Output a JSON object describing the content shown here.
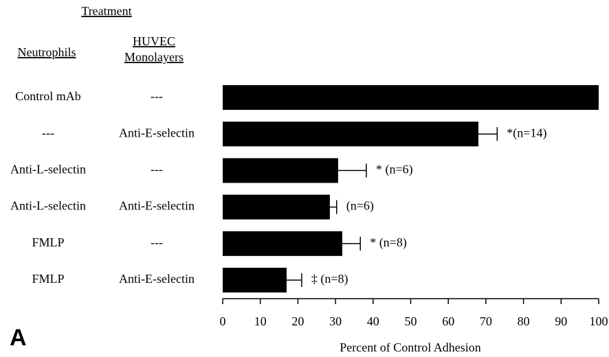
{
  "chart_data": {
    "type": "bar",
    "orientation": "horizontal",
    "panel_label": "A",
    "column_title": "Treatment",
    "column_headers": [
      "Neutrophils",
      [
        "HUVEC",
        "Monolayers"
      ]
    ],
    "categories": [
      [
        "Control mAb",
        "---"
      ],
      [
        "---",
        "Anti-E-selectin"
      ],
      [
        "Anti-L-selectin",
        "---"
      ],
      [
        "Anti-L-selectin",
        "Anti-E-selectin"
      ],
      [
        "FMLP",
        "---"
      ],
      [
        "FMLP",
        "Anti-E-selectin"
      ]
    ],
    "values": [
      100,
      68,
      30.7,
      28.5,
      31.8,
      17
    ],
    "errors": [
      null,
      5,
      7.5,
      1.8,
      4.8,
      4
    ],
    "annotations": [
      null,
      "*(n=14)",
      "* (n=6)",
      "(n=6)",
      "* (n=8)",
      "‡ (n=8)"
    ],
    "color": "#000000",
    "xlabel": "Percent of Control Adhesion",
    "xlim": [
      0,
      100
    ],
    "xticks": [
      0,
      10,
      20,
      30,
      40,
      50,
      60,
      70,
      80,
      90,
      100
    ]
  }
}
